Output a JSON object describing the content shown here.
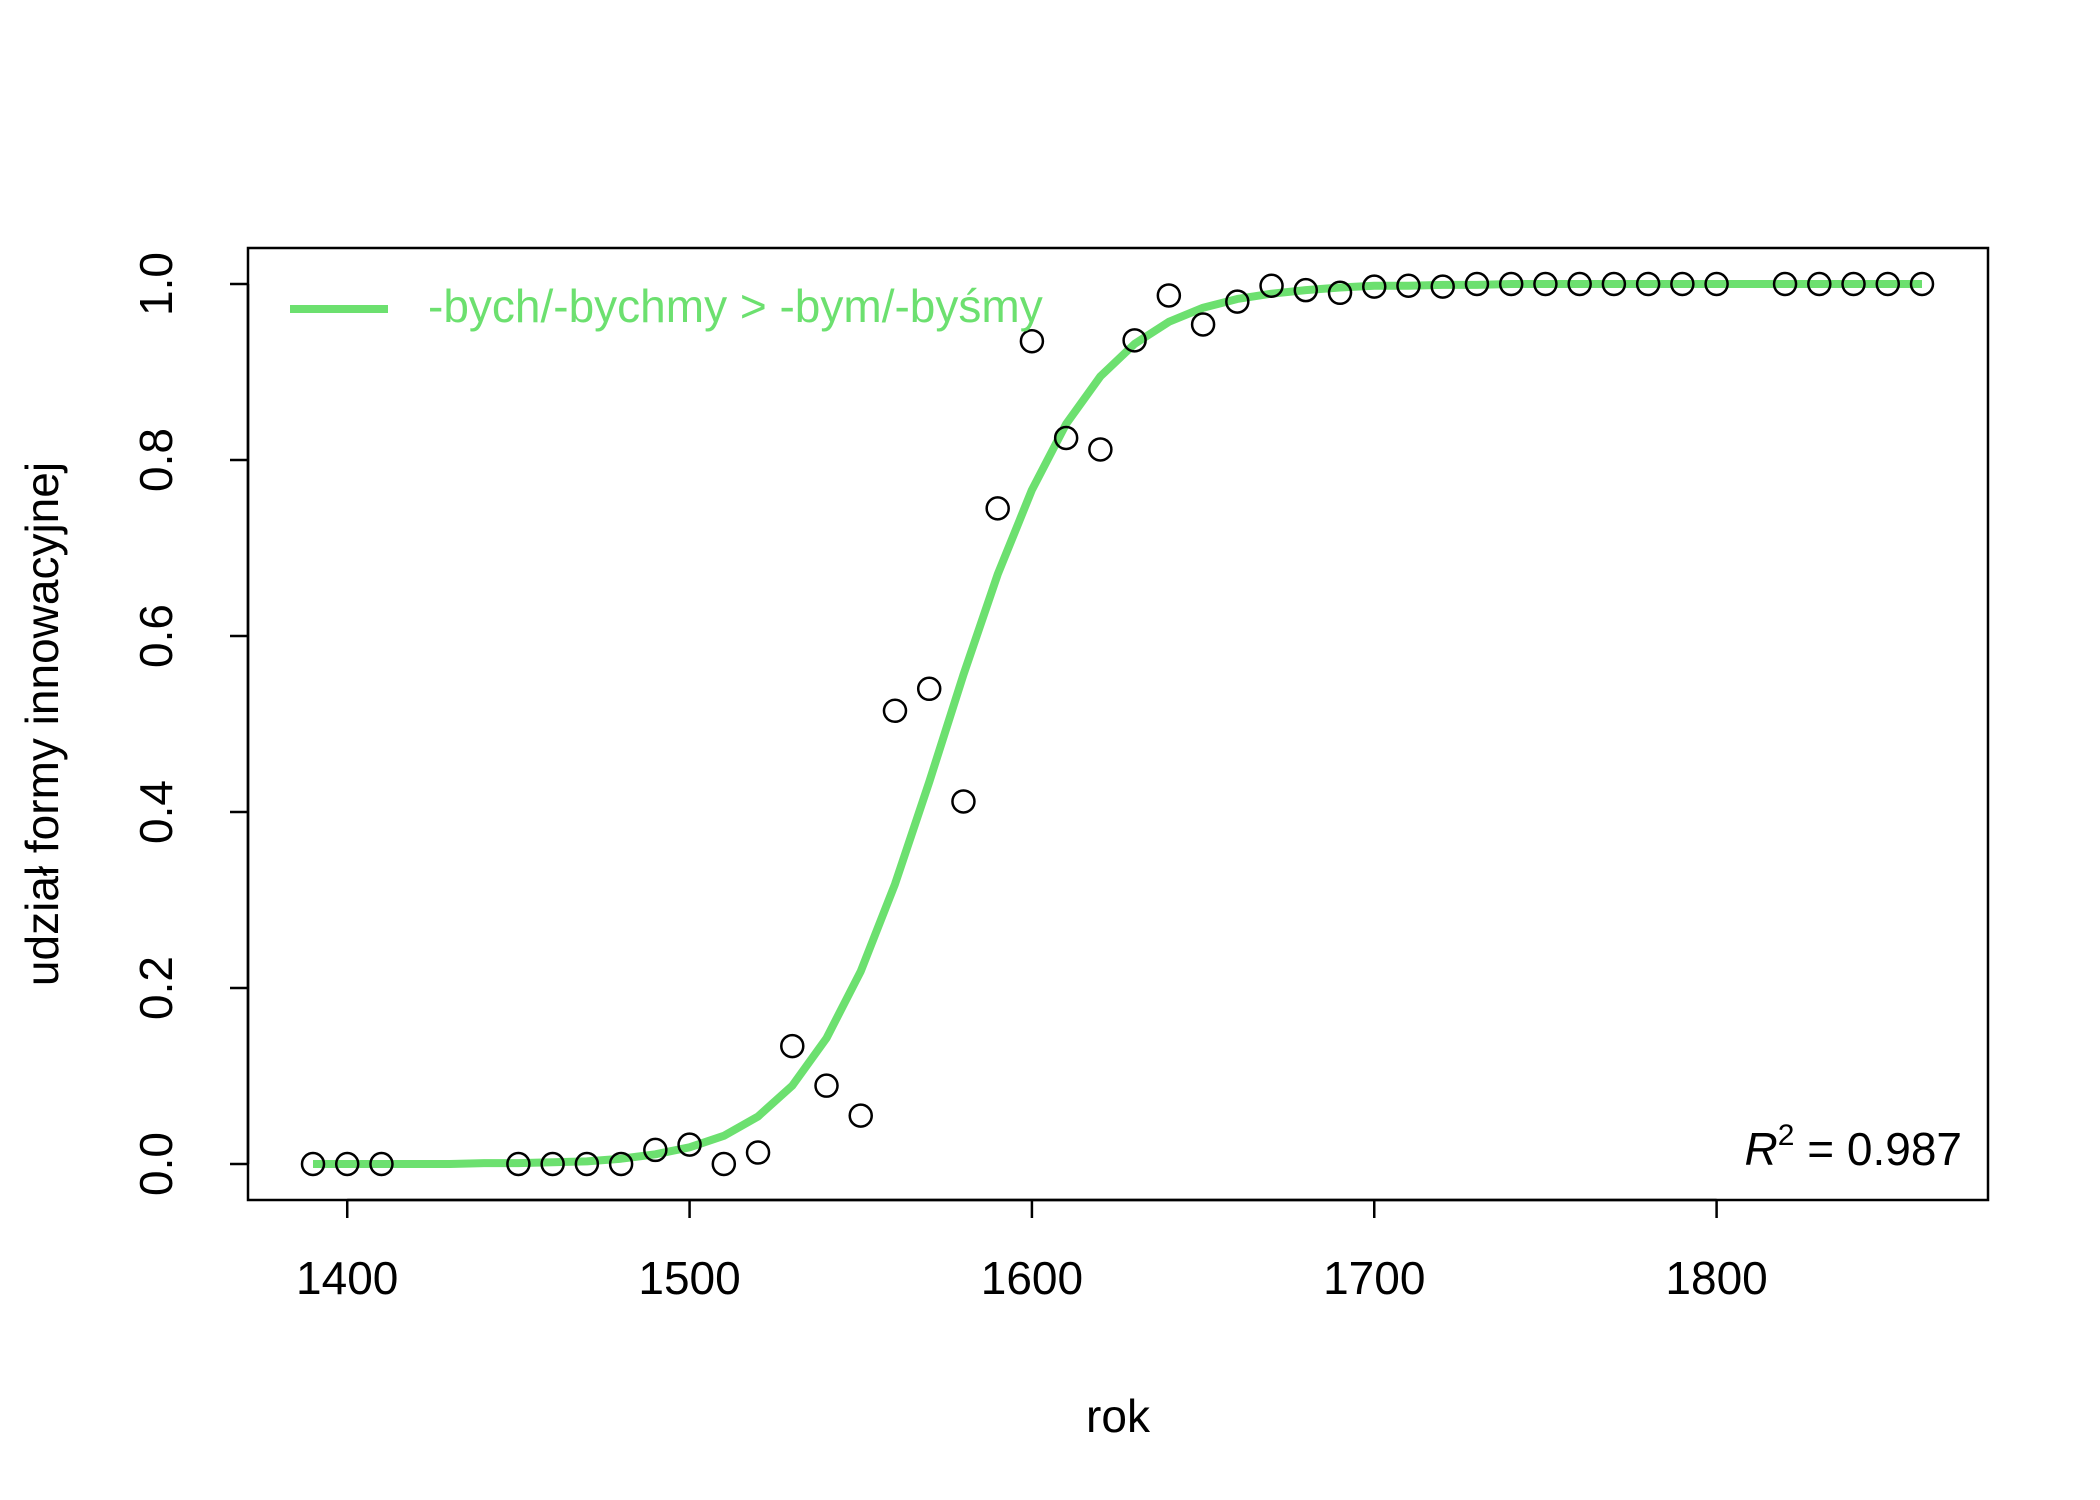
{
  "chart_data": {
    "type": "scatter",
    "title": "",
    "xlabel": "rok",
    "ylabel": "udział formy innowacyjnej",
    "xlim": [
      1390,
      1860
    ],
    "ylim": [
      0,
      1.0
    ],
    "xticks": [
      "1400",
      "1500",
      "1600",
      "1700",
      "1800"
    ],
    "yticks": [
      "0.0",
      "0.2",
      "0.4",
      "0.6",
      "0.8",
      "1.0"
    ],
    "grid": false,
    "legend": {
      "placement": "top-left",
      "label": "-bych/-bychmy > -bym/-byśmy"
    },
    "annotation": {
      "r_symbol": "R",
      "r_exp": "2",
      "text": " = 0.987"
    },
    "colors": {
      "fit": "#6CE06F",
      "points": "#000000"
    },
    "series": [
      {
        "name": "observed",
        "x": [
          1390,
          1400,
          1410,
          1450,
          1460,
          1470,
          1480,
          1490,
          1500,
          1510,
          1520,
          1530,
          1540,
          1550,
          1560,
          1570,
          1580,
          1590,
          1600,
          1610,
          1620,
          1630,
          1640,
          1650,
          1660,
          1670,
          1680,
          1690,
          1700,
          1710,
          1720,
          1730,
          1740,
          1750,
          1760,
          1770,
          1780,
          1790,
          1800,
          1820,
          1830,
          1840,
          1850,
          1860
        ],
        "y": [
          0.0,
          0.0,
          0.0,
          0.0,
          0.0,
          0.0,
          0.0,
          0.016,
          0.022,
          0.0,
          0.013,
          0.134,
          0.089,
          0.055,
          0.515,
          0.54,
          0.412,
          0.745,
          0.935,
          0.825,
          0.812,
          0.936,
          0.987,
          0.954,
          0.98,
          0.998,
          0.993,
          0.99,
          0.997,
          0.998,
          0.997,
          1.0,
          1.0,
          1.0,
          1.0,
          1.0,
          1.0,
          1.0,
          1.0,
          1.0,
          1.0,
          1.0,
          1.0,
          1.0
        ]
      },
      {
        "name": "-bych/-bychmy > -bym/-byśmy",
        "x": [
          1390,
          1400,
          1410,
          1420,
          1430,
          1440,
          1450,
          1460,
          1470,
          1480,
          1490,
          1500,
          1510,
          1520,
          1530,
          1540,
          1550,
          1560,
          1570,
          1580,
          1590,
          1600,
          1610,
          1620,
          1630,
          1640,
          1650,
          1660,
          1670,
          1680,
          1690,
          1700,
          1710,
          1720,
          1730,
          1740,
          1750,
          1760,
          1770,
          1780,
          1790,
          1800,
          1810,
          1820,
          1830,
          1840,
          1850,
          1860
        ],
        "y": [
          0.0,
          0.0,
          0.0,
          0.0,
          0.0,
          0.001,
          0.001,
          0.002,
          0.003,
          0.006,
          0.011,
          0.019,
          0.032,
          0.054,
          0.089,
          0.143,
          0.219,
          0.318,
          0.434,
          0.556,
          0.67,
          0.766,
          0.841,
          0.895,
          0.932,
          0.957,
          0.973,
          0.983,
          0.989,
          0.993,
          0.996,
          0.998,
          0.998,
          0.999,
          0.999,
          1.0,
          1.0,
          1.0,
          1.0,
          1.0,
          1.0,
          1.0,
          1.0,
          1.0,
          1.0,
          1.0,
          1.0,
          1.0
        ]
      }
    ]
  }
}
